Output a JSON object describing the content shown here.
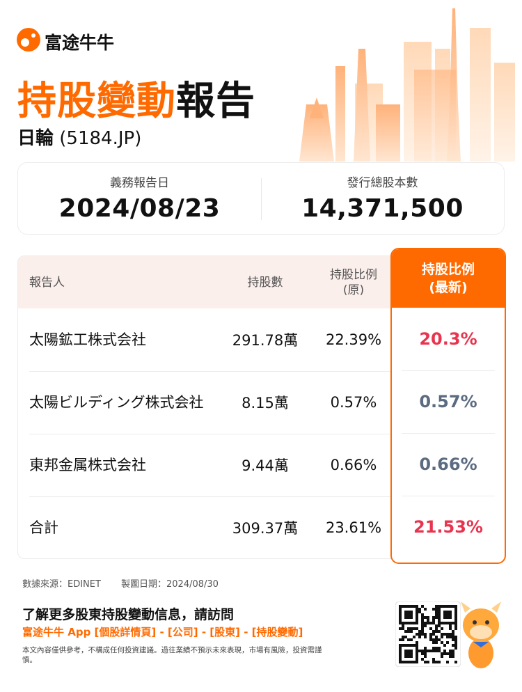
{
  "brand": "富途牛牛",
  "title": {
    "highlight": "持股變動",
    "rest": "報告"
  },
  "company": {
    "name": "日輪",
    "code": "(5184.JP)"
  },
  "summary": [
    {
      "label": "義務報告日",
      "value": "2024/08/23"
    },
    {
      "label": "發行總股本數",
      "value": "14,371,500"
    }
  ],
  "table": {
    "headers": [
      [
        "報告人"
      ],
      [
        "持股數"
      ],
      [
        "持股比例",
        "(原)"
      ],
      [
        "持股比例",
        "(最新)"
      ]
    ],
    "rows": [
      [
        "太陽鉱工株式会社",
        "291.78萬",
        "22.39%",
        "20.3%"
      ],
      [
        "太陽ビルディング株式会社",
        "8.15萬",
        "0.57%",
        "0.57%"
      ],
      [
        "東邦金属株式会社",
        "9.44萬",
        "0.66%",
        "0.66%"
      ],
      [
        "合計",
        "309.37萬",
        "23.61%",
        "21.53%"
      ]
    ]
  },
  "footer": {
    "source": "數據來源：EDINET",
    "date": "製圖日期：2024/08/30",
    "cta": "了解更多股東持股變動信息，請訪問",
    "link": "富途牛牛 App [個股詳情頁] - [公司] - [股東] - [持股變動]",
    "disclaimer": "本文內容僅供參考，不構成任何投資建議。過往業績不預示未來表現，市場有風險，投資需謹慎。"
  }
}
